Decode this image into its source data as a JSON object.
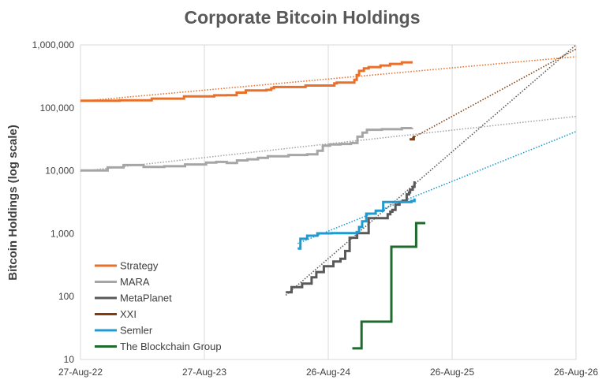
{
  "chart_data": {
    "type": "line",
    "title": "Corporate Bitcoin Holdings",
    "ylabel": "Bitcoin Holdings (log scale)",
    "xlabel": "",
    "y_scale": "log",
    "ylim": [
      10,
      1000000
    ],
    "y_ticks": [
      {
        "value": 10,
        "label": "10"
      },
      {
        "value": 100,
        "label": "100"
      },
      {
        "value": 1000,
        "label": "1,000"
      },
      {
        "value": 10000,
        "label": "10,000"
      },
      {
        "value": 100000,
        "label": "100,000"
      },
      {
        "value": 1000000,
        "label": "1,000,000"
      }
    ],
    "xlim": [
      "2022-08-27",
      "2026-08-26"
    ],
    "x_ticks": [
      {
        "value": "2022-08-27",
        "label": "27-Aug-22"
      },
      {
        "value": "2023-08-27",
        "label": "27-Aug-23"
      },
      {
        "value": "2024-08-26",
        "label": "26-Aug-24"
      },
      {
        "value": "2025-08-26",
        "label": "26-Aug-25"
      },
      {
        "value": "2026-08-26",
        "label": "26-Aug-26"
      }
    ],
    "grid": "vertical",
    "legend": "bottom-left",
    "series": [
      {
        "name": "Strategy",
        "color": "#E8702A",
        "points": [
          [
            "2022-08-27",
            130000
          ],
          [
            "2022-12-20",
            132000
          ],
          [
            "2023-03-25",
            140000
          ],
          [
            "2023-06-28",
            152000
          ],
          [
            "2023-09-25",
            158000
          ],
          [
            "2023-11-01",
            158500
          ],
          [
            "2023-11-30",
            174500
          ],
          [
            "2023-12-27",
            189000
          ],
          [
            "2024-02-26",
            193000
          ],
          [
            "2024-03-11",
            205000
          ],
          [
            "2024-03-19",
            214000
          ],
          [
            "2024-06-20",
            226000
          ],
          [
            "2024-09-13",
            244800
          ],
          [
            "2024-09-20",
            252200
          ],
          [
            "2024-11-11",
            279000
          ],
          [
            "2024-11-18",
            331200
          ],
          [
            "2024-11-25",
            386700
          ],
          [
            "2024-12-09",
            423650
          ],
          [
            "2024-12-23",
            444262
          ],
          [
            "2025-01-27",
            471107
          ],
          [
            "2025-02-24",
            499096
          ],
          [
            "2025-03-31",
            528185
          ],
          [
            "2025-04-28",
            553555
          ]
        ],
        "trend": [
          [
            "2022-08-27",
            127000
          ],
          [
            "2026-08-26",
            650000
          ]
        ]
      },
      {
        "name": "MARA",
        "color": "#A6A6A6",
        "points": [
          [
            "2022-08-27",
            10100
          ],
          [
            "2022-11-15",
            11300
          ],
          [
            "2023-01-01",
            12300
          ],
          [
            "2023-03-01",
            11500
          ],
          [
            "2023-05-01",
            11800
          ],
          [
            "2023-07-01",
            12600
          ],
          [
            "2023-09-01",
            13500
          ],
          [
            "2023-10-01",
            13800
          ],
          [
            "2023-11-01",
            13300
          ],
          [
            "2023-12-01",
            14600
          ],
          [
            "2024-01-01",
            15200
          ],
          [
            "2024-02-01",
            16000
          ],
          [
            "2024-03-01",
            17000
          ],
          [
            "2024-05-01",
            17800
          ],
          [
            "2024-06-25",
            18300
          ],
          [
            "2024-07-25",
            20800
          ],
          [
            "2024-08-10",
            25000
          ],
          [
            "2024-08-31",
            26200
          ],
          [
            "2024-10-01",
            26700
          ],
          [
            "2024-11-01",
            27600
          ],
          [
            "2024-11-20",
            34800
          ],
          [
            "2024-12-05",
            40400
          ],
          [
            "2024-12-18",
            44800
          ],
          [
            "2025-01-31",
            45700
          ],
          [
            "2025-03-31",
            47600
          ],
          [
            "2025-04-30",
            48100
          ]
        ],
        "trend": [
          [
            "2022-08-27",
            9800
          ],
          [
            "2026-08-26",
            73000
          ]
        ]
      },
      {
        "name": "MetaPlanet",
        "color": "#595959",
        "points": [
          [
            "2024-04-23",
            117
          ],
          [
            "2024-05-10",
            141
          ],
          [
            "2024-06-10",
            161
          ],
          [
            "2024-07-08",
            203
          ],
          [
            "2024-07-22",
            245
          ],
          [
            "2024-08-13",
            303
          ],
          [
            "2024-09-10",
            360
          ],
          [
            "2024-10-01",
            399
          ],
          [
            "2024-10-15",
            530
          ],
          [
            "2024-10-28",
            861
          ],
          [
            "2024-11-19",
            1018
          ],
          [
            "2024-12-23",
            1762
          ],
          [
            "2025-02-17",
            2031
          ],
          [
            "2025-02-25",
            2235
          ],
          [
            "2025-03-03",
            2391
          ],
          [
            "2025-03-12",
            2888
          ],
          [
            "2025-03-24",
            3200
          ],
          [
            "2025-04-02",
            3350
          ],
          [
            "2025-04-14",
            4206
          ],
          [
            "2025-04-21",
            4525
          ],
          [
            "2025-04-24",
            5000
          ],
          [
            "2025-05-02",
            5555
          ],
          [
            "2025-05-07",
            6796
          ]
        ],
        "trend": [
          [
            "2024-04-23",
            105
          ],
          [
            "2026-08-26",
            1000000
          ]
        ]
      },
      {
        "name": "XXI",
        "color": "#843C0C",
        "points": [
          [
            "2025-04-23",
            31500
          ],
          [
            "2025-05-05",
            36000
          ]
        ],
        "trend": [
          [
            "2025-04-23",
            31500
          ],
          [
            "2026-08-26",
            860000
          ]
        ]
      },
      {
        "name": "Semler",
        "color": "#1F9BD1",
        "points": [
          [
            "2024-05-28",
            581
          ],
          [
            "2024-06-05",
            828
          ],
          [
            "2024-06-25",
            929
          ],
          [
            "2024-07-25",
            1012
          ],
          [
            "2024-09-05",
            1018
          ],
          [
            "2024-11-18",
            1058
          ],
          [
            "2024-11-25",
            1273
          ],
          [
            "2024-12-04",
            1570
          ],
          [
            "2024-12-16",
            2084
          ],
          [
            "2025-01-13",
            2321
          ],
          [
            "2025-02-04",
            3192
          ],
          [
            "2025-03-31",
            3182
          ],
          [
            "2025-04-28",
            3303
          ],
          [
            "2025-05-07",
            3634
          ]
        ],
        "trend": [
          [
            "2024-05-28",
            700
          ],
          [
            "2026-08-26",
            42000
          ]
        ]
      },
      {
        "name": "The Blockchain Group",
        "color": "#1E6B2D",
        "points": [
          [
            "2024-11-05",
            15
          ],
          [
            "2024-12-02",
            15
          ],
          [
            "2024-12-02",
            40
          ],
          [
            "2025-02-28",
            40
          ],
          [
            "2025-02-28",
            620
          ],
          [
            "2025-05-12",
            620
          ],
          [
            "2025-05-12",
            1471
          ],
          [
            "2025-06-08",
            1471
          ]
        ]
      }
    ]
  }
}
